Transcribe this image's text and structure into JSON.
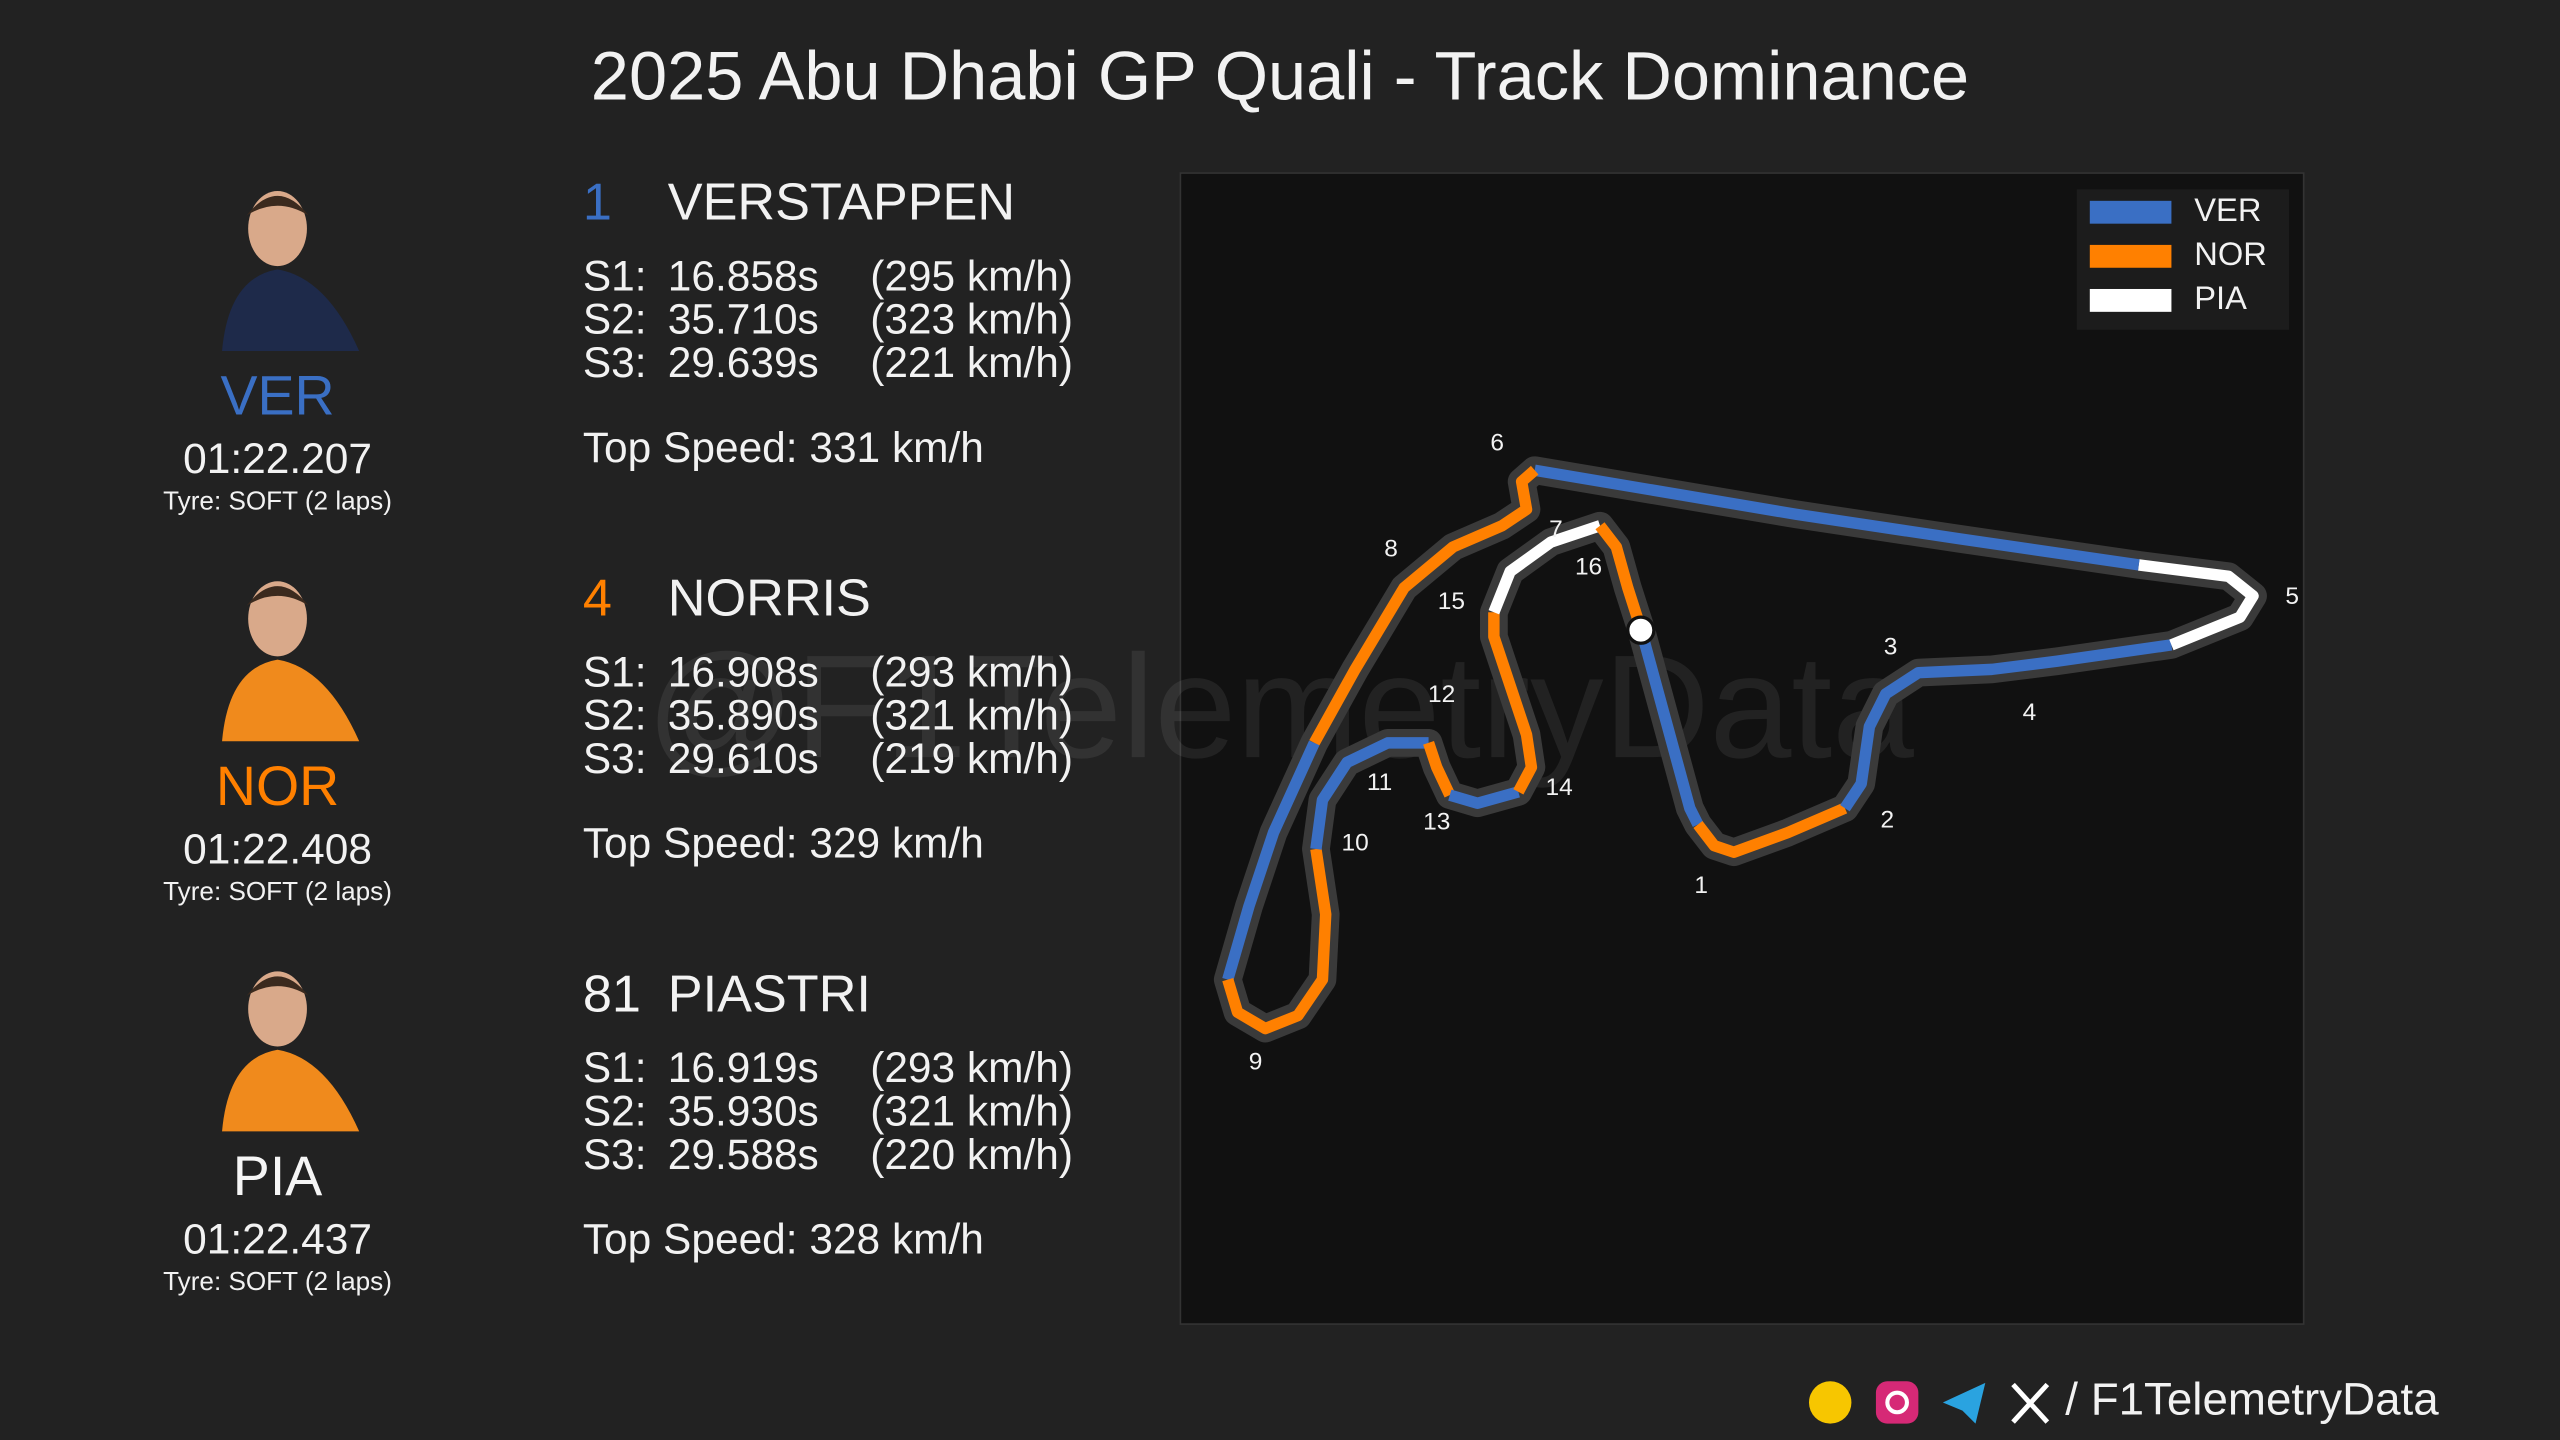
{
  "header": {
    "title": "2025 Abu Dhabi GP Quali - Track Dominance"
  },
  "drivers": [
    {
      "code": "VER",
      "color": "#3a6fc4",
      "lap_time": "01:22.207",
      "tyre": "Tyre: SOFT (2 laps)",
      "number": "1",
      "name": "VERSTAPPEN",
      "sectors": [
        {
          "label": "S1:",
          "time": "16.858s",
          "speed": "(295 km/h)"
        },
        {
          "label": "S2:",
          "time": "35.710s",
          "speed": "(323 km/h)"
        },
        {
          "label": "S3:",
          "time": "29.639s",
          "speed": "(221 km/h)"
        }
      ],
      "top_speed": "Top Speed: 331 km/h"
    },
    {
      "code": "NOR",
      "color": "#ff8000",
      "lap_time": "01:22.408",
      "tyre": "Tyre: SOFT (2 laps)",
      "number": "4",
      "name": "NORRIS",
      "sectors": [
        {
          "label": "S1:",
          "time": "16.908s",
          "speed": "(293 km/h)"
        },
        {
          "label": "S2:",
          "time": "35.890s",
          "speed": "(321 km/h)"
        },
        {
          "label": "S3:",
          "time": "29.610s",
          "speed": "(219 km/h)"
        }
      ],
      "top_speed": "Top Speed: 329 km/h"
    },
    {
      "code": "PIA",
      "color": "#f5f5f5",
      "lap_time": "01:22.437",
      "tyre": "Tyre: SOFT (2 laps)",
      "number": "81",
      "name": "PIASTRI",
      "sectors": [
        {
          "label": "S1:",
          "time": "16.919s",
          "speed": "(293 km/h)"
        },
        {
          "label": "S2:",
          "time": "35.930s",
          "speed": "(321 km/h)"
        },
        {
          "label": "S3:",
          "time": "29.588s",
          "speed": "(220 km/h)"
        }
      ],
      "top_speed": "Top Speed: 328 km/h"
    }
  ],
  "map": {
    "legend": {
      "items": [
        {
          "label": "VER",
          "color": "#3a6fc4"
        },
        {
          "label": "NOR",
          "color": "#ff8000"
        },
        {
          "label": "PIA",
          "color": "#ffffff"
        }
      ]
    },
    "corners": [
      "1",
      "2",
      "3",
      "4",
      "5",
      "6",
      "7",
      "8",
      "9",
      "10",
      "11",
      "12",
      "13",
      "14",
      "15",
      "16"
    ]
  },
  "watermark": "@F1TelemetryData",
  "footer": {
    "handle": "/ F1TelemetryData"
  }
}
